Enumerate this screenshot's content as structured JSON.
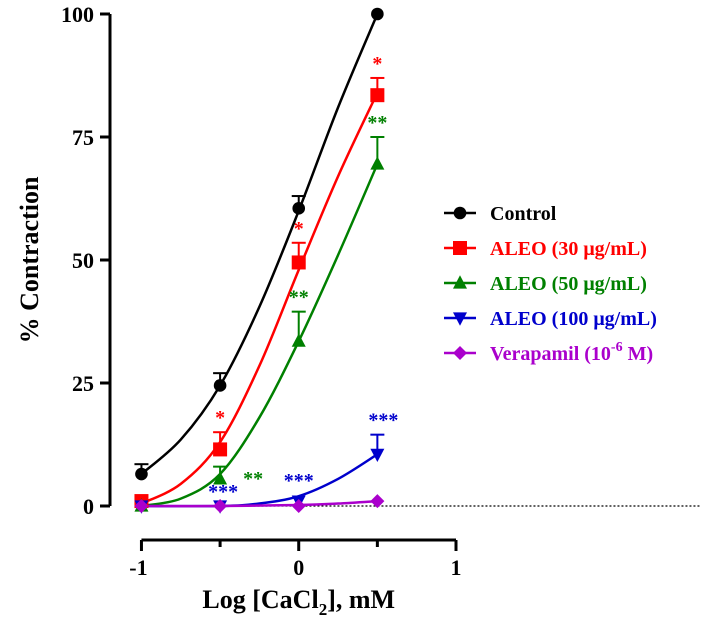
{
  "chart_data": {
    "type": "scatter",
    "title": "",
    "xlabel_main": "Log [CaCl",
    "xlabel_sub": "2",
    "xlabel_tail": "], mM",
    "ylabel": "% Contraction",
    "xlim": [
      -1,
      1
    ],
    "ylim": [
      0,
      100
    ],
    "x_ticks": [
      -1,
      -0.5,
      0,
      0.5,
      1
    ],
    "x_tick_labels": [
      "-1",
      "0",
      "1"
    ],
    "x_tick_label_values": [
      -1,
      0,
      1
    ],
    "y_ticks": [
      0,
      25,
      50,
      75,
      100
    ],
    "y_tick_labels": [
      "0",
      "25",
      "50",
      "75",
      "100"
    ],
    "baseline_y": 0,
    "legend_position": "right",
    "series": [
      {
        "name": "Control",
        "color": "#000000",
        "marker": "circle",
        "x": [
          -1,
          -0.5,
          0,
          0.5
        ],
        "y": [
          6.5,
          24.5,
          60.5,
          100
        ],
        "error": [
          2,
          2.5,
          2.5,
          0
        ],
        "fit": [
          [
            -1,
            6.5
          ],
          [
            -0.75,
            13.5
          ],
          [
            -0.5,
            24.5
          ],
          [
            -0.25,
            40.5
          ],
          [
            0,
            60
          ],
          [
            0.25,
            81
          ],
          [
            0.5,
            100
          ]
        ],
        "significance": [
          "",
          "",
          "",
          ""
        ]
      },
      {
        "name": "ALEO (30 μg/mL)",
        "color": "#ff0000",
        "marker": "square",
        "x": [
          -1,
          -0.5,
          0,
          0.5
        ],
        "y": [
          1,
          11.5,
          49.5,
          83.5
        ],
        "error": [
          0,
          3.5,
          4,
          3.5
        ],
        "fit": [
          [
            -1,
            0.5
          ],
          [
            -0.75,
            4.5
          ],
          [
            -0.5,
            13
          ],
          [
            -0.25,
            28.5
          ],
          [
            0,
            48
          ],
          [
            0.25,
            67
          ],
          [
            0.5,
            84
          ]
        ],
        "significance": [
          "",
          "*",
          "*",
          "*"
        ]
      },
      {
        "name": "ALEO (50 μg/mL)",
        "color": "#008000",
        "marker": "triangle-up",
        "x": [
          -1,
          -0.5,
          0,
          0.5
        ],
        "y": [
          0,
          5.5,
          33.5,
          69.5
        ],
        "error": [
          0,
          2.5,
          6,
          5.5
        ],
        "fit": [
          [
            -1,
            0
          ],
          [
            -0.75,
            1.5
          ],
          [
            -0.5,
            6.5
          ],
          [
            -0.25,
            18
          ],
          [
            0,
            33.5
          ],
          [
            0.25,
            51
          ],
          [
            0.5,
            69.5
          ]
        ],
        "significance": [
          "",
          "**",
          "**",
          "**"
        ]
      },
      {
        "name": "ALEO (100 μg/mL)",
        "color": "#0000cc",
        "marker": "triangle-down",
        "x": [
          -1,
          -0.5,
          0,
          0.5
        ],
        "y": [
          0,
          0,
          1,
          10.5
        ],
        "error": [
          0,
          0,
          0,
          4
        ],
        "fit": [
          [
            -1,
            0
          ],
          [
            -0.5,
            0
          ],
          [
            -0.25,
            0.5
          ],
          [
            0,
            2
          ],
          [
            0.25,
            5.5
          ],
          [
            0.5,
            10.5
          ]
        ],
        "significance": [
          "",
          "***",
          "***",
          "***"
        ]
      },
      {
        "name": "Verapamil (10⁻⁶ M)",
        "color": "#aa00cc",
        "marker": "diamond",
        "x": [
          -1,
          -0.5,
          0,
          0.5
        ],
        "y": [
          0,
          0,
          0,
          1
        ],
        "error": [
          0,
          0,
          0,
          0
        ],
        "fit": [
          [
            -1,
            0
          ],
          [
            -0.5,
            0
          ],
          [
            0,
            0.2
          ],
          [
            0.25,
            0.5
          ],
          [
            0.5,
            1
          ]
        ],
        "significance": [
          "",
          "",
          "",
          ""
        ]
      }
    ],
    "legend": [
      {
        "label": "Control",
        "label_sup": "",
        "label_tail": ""
      },
      {
        "label": "ALEO (30 μg/mL)",
        "label_sup": "",
        "label_tail": ""
      },
      {
        "label": "ALEO (50 μg/mL)",
        "label_sup": "",
        "label_tail": ""
      },
      {
        "label": "ALEO (100 μg/mL)",
        "label_sup": "",
        "label_tail": ""
      },
      {
        "label": "Verapamil (10",
        "label_sup": "-6",
        "label_tail": " M)"
      }
    ]
  }
}
